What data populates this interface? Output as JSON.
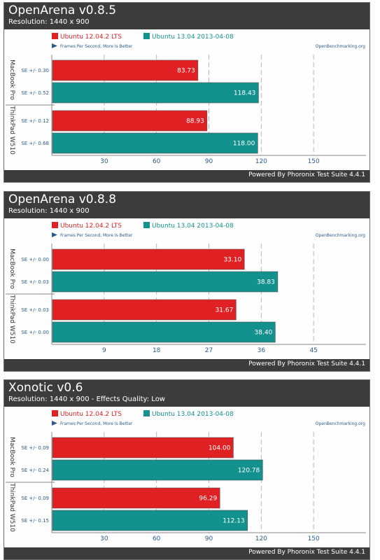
{
  "legend": {
    "ubuntu1204": "Ubuntu 12.04.2 LTS",
    "ubuntu1304": "Ubuntu 13.04 2013-04-08",
    "direction": "Frames Per Second, More Is Better",
    "site": "OpenBenchmarking.org"
  },
  "footer": "Powered By Phoronix Test Suite 4.4.1",
  "colors": {
    "ubuntu1204": "#e02124",
    "ubuntu1304": "#12918e",
    "header": "#3c3c3c",
    "axis_text": "#2c5a8c"
  },
  "chart_data": [
    {
      "type": "bar",
      "title": "OpenArena v0.8.5",
      "subtitle": "Resolution: 1440 x 900",
      "groups": [
        "MacBook Pro",
        "ThinkPad W510"
      ],
      "series": [
        {
          "name": "Ubuntu 12.04.2 LTS",
          "values": [
            83.73,
            88.93
          ],
          "se": [
            "SE +/- 0.30",
            "SE +/- 0.12"
          ]
        },
        {
          "name": "Ubuntu 13.04 2013-04-08",
          "values": [
            118.43,
            118.0
          ],
          "se": [
            "SE +/- 0.52",
            "SE +/- 0.68"
          ]
        }
      ],
      "value_labels": [
        [
          "83.73",
          "88.93"
        ],
        [
          "118.43",
          "118.00"
        ]
      ],
      "xlim": [
        0,
        180
      ],
      "ticks": [
        30,
        60,
        90,
        120,
        150
      ],
      "orientation": "horizontal",
      "grid": true
    },
    {
      "type": "bar",
      "title": "OpenArena v0.8.8",
      "subtitle": "Resolution: 1440 x 900",
      "groups": [
        "MacBook Pro",
        "ThinkPad W510"
      ],
      "series": [
        {
          "name": "Ubuntu 12.04.2 LTS",
          "values": [
            33.1,
            31.67
          ],
          "se": [
            "SE +/- 0.00",
            "SE +/- 0.03"
          ]
        },
        {
          "name": "Ubuntu 13.04 2013-04-08",
          "values": [
            38.83,
            38.4
          ],
          "se": [
            "SE +/- 0.03",
            "SE +/- 0.00"
          ]
        }
      ],
      "value_labels": [
        [
          "33.10",
          "31.67"
        ],
        [
          "38.83",
          "38.40"
        ]
      ],
      "xlim": [
        0,
        54
      ],
      "ticks": [
        9,
        18,
        27,
        36,
        45
      ],
      "orientation": "horizontal",
      "grid": true
    },
    {
      "type": "bar",
      "title": "Xonotic v0.6",
      "subtitle": "Resolution: 1440 x 900 - Effects Quality: Low",
      "groups": [
        "MacBook Pro",
        "ThinkPad W510"
      ],
      "series": [
        {
          "name": "Ubuntu 12.04.2 LTS",
          "values": [
            104.0,
            96.29
          ],
          "se": [
            "SE +/- 0.09",
            "SE +/- 0.09"
          ]
        },
        {
          "name": "Ubuntu 13.04 2013-04-08",
          "values": [
            120.78,
            112.13
          ],
          "se": [
            "SE +/- 0.24",
            "SE +/- 0.15"
          ]
        }
      ],
      "value_labels": [
        [
          "104.00",
          "96.29"
        ],
        [
          "120.78",
          "112.13"
        ]
      ],
      "xlim": [
        0,
        180
      ],
      "ticks": [
        30,
        60,
        90,
        120,
        150
      ],
      "orientation": "horizontal",
      "grid": true
    }
  ]
}
